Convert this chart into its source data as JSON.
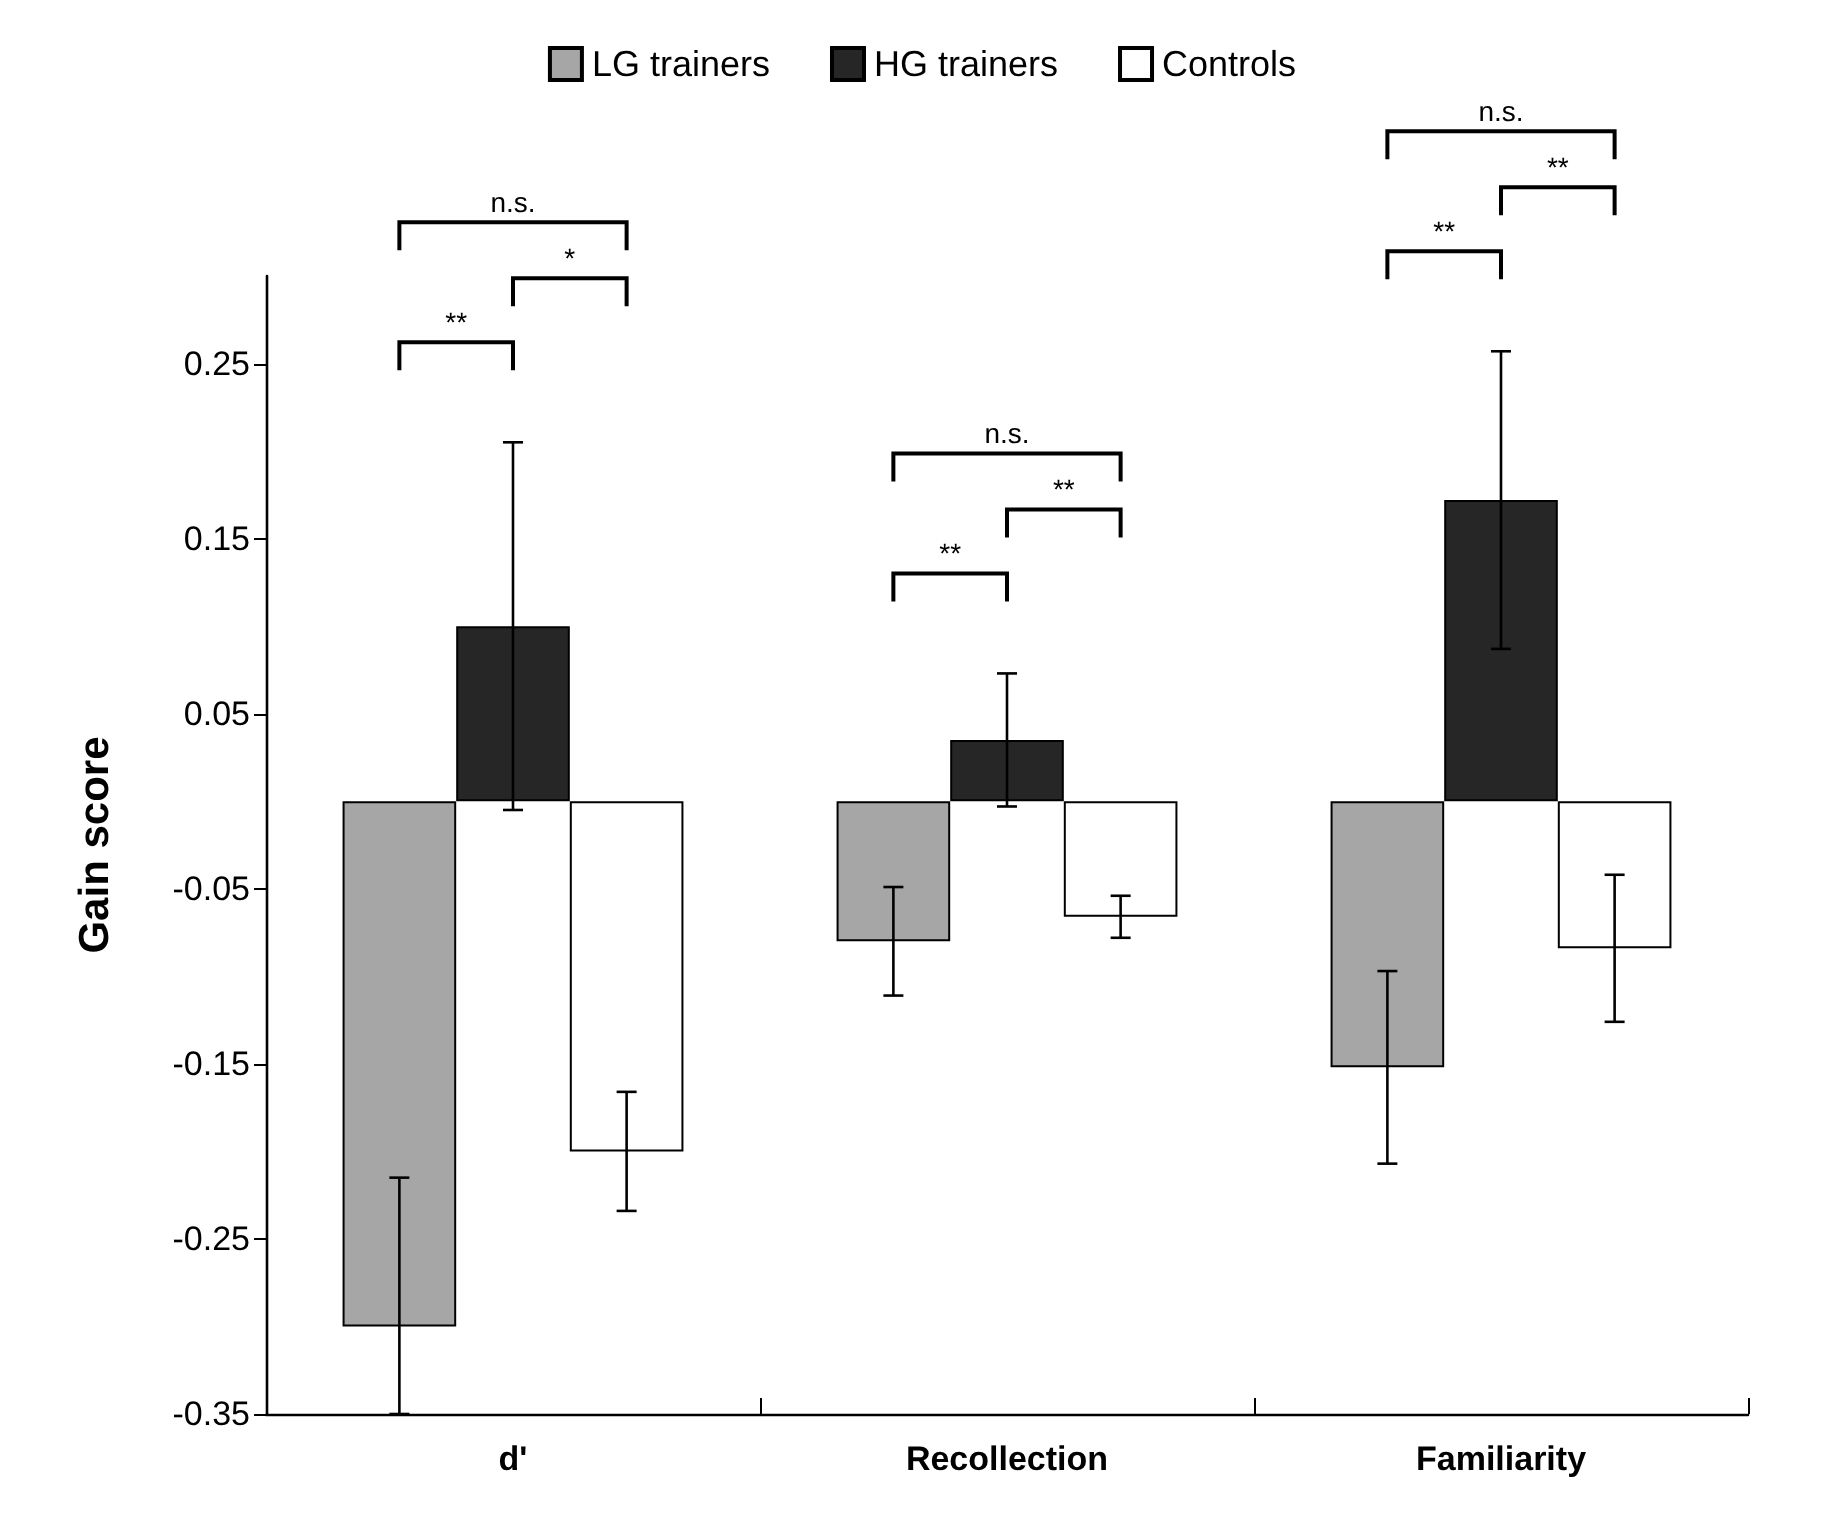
{
  "chart_data": {
    "type": "bar",
    "categories": [
      "d'",
      "Recollection",
      "Familiarity"
    ],
    "series": [
      {
        "name": "LG trainers",
        "color": "#a6a6a6",
        "values": [
          -0.3,
          -0.08,
          -0.152
        ],
        "errors": [
          [
            -0.35,
            -0.215
          ],
          0.031,
          0.055
        ]
      },
      {
        "name": "HG trainers",
        "color": "#262626",
        "values": [
          0.1,
          0.035,
          0.172
        ],
        "errors": [
          0.105,
          0.038,
          0.085
        ]
      },
      {
        "name": "Controls",
        "color": "#ffffff",
        "values": [
          -0.2,
          -0.066,
          -0.084
        ],
        "errors": [
          0.034,
          0.012,
          0.042
        ]
      }
    ],
    "ylabel": "Gain score",
    "ylim": [
      -0.35,
      0.3
    ],
    "yticks": [
      -0.35,
      -0.25,
      -0.15,
      -0.05,
      0.05,
      0.15,
      0.25
    ],
    "legend": "top",
    "grid": false,
    "annotations": [
      "n.s.",
      "**",
      "*",
      "n.s.",
      "**",
      "**",
      "n.s.",
      "**",
      "**"
    ]
  }
}
